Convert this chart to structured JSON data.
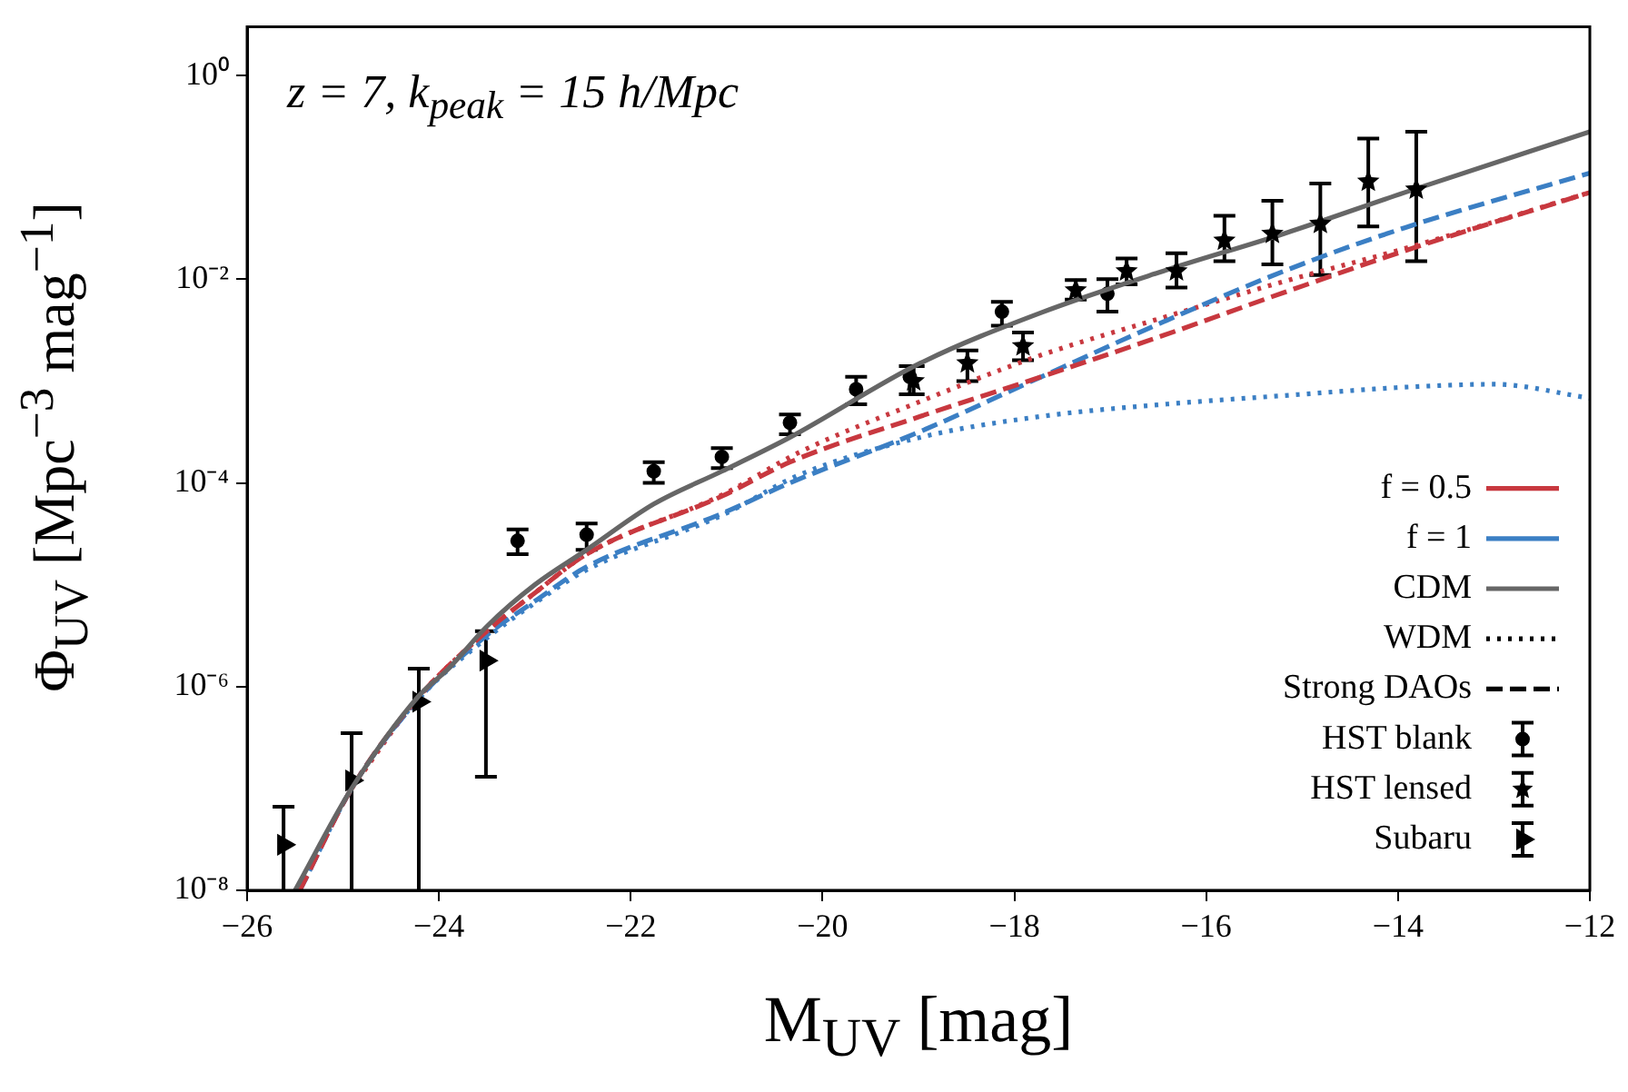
{
  "chart_data": {
    "type": "line",
    "xlabel": "M$_{UV}$ [mag]",
    "ylabel": "Φ$_{UV}$ [Mpc$^{−3}$ mag$^{−1}$]",
    "annotations": [
      "z = 7,  k$_{peak}$ = 15 h/Mpc"
    ],
    "xlim": [
      -26,
      -12
    ],
    "xticks": [
      {
        "value": -26,
        "label": "−26"
      },
      {
        "value": -24,
        "label": "−24"
      },
      {
        "value": -22,
        "label": "−22"
      },
      {
        "value": -20,
        "label": "−20"
      },
      {
        "value": -18,
        "label": "−18"
      },
      {
        "value": -16,
        "label": "−16"
      },
      {
        "value": -14,
        "label": "−14"
      },
      {
        "value": -12,
        "label": "−12"
      }
    ],
    "ylim": [
      1e-08,
      3
    ],
    "yticks": [
      {
        "value": 1e-08,
        "label": "10⁻⁸"
      },
      {
        "value": 1e-06,
        "label": "10⁻⁶"
      },
      {
        "value": 0.0001,
        "label": "10⁻⁴"
      },
      {
        "value": 0.01,
        "label": "10⁻²"
      },
      {
        "value": 1,
        "label": "10⁰"
      }
    ],
    "log": "y",
    "grid": false,
    "legend": "bottom right",
    "series": [
      {
        "name": "f = 0.5",
        "color": "#c8383f",
        "line_style": "solid"
      },
      {
        "name": "f = 1",
        "color": "#3b7fc4",
        "line_style": "solid"
      },
      {
        "name": "CDM",
        "color": "#666666",
        "line_style": "solid",
        "x": [
          -25.5,
          -24.91,
          -24.21,
          -23.9,
          -23.5,
          -23.0,
          -22.46,
          -21.76,
          -21.05,
          -20.34,
          -18.98,
          -17.72,
          -16.45,
          -15.19,
          -13.93,
          -12
        ],
        "values": [
          1e-08,
          1e-07,
          8.1e-07,
          1.5e-06,
          3.9e-06,
          1e-05,
          2.2e-05,
          6.2e-05,
          0.00013,
          0.00028,
          0.0015,
          0.0047,
          0.012,
          0.028,
          0.071,
          0.28
        ]
      },
      {
        "name": "WDM",
        "line_style": "dotted"
      },
      {
        "name": "Strong DAOs",
        "line_style": "dashed"
      },
      {
        "name": "HST blank",
        "type": "scatter",
        "marker": "circle",
        "color": "#000000",
        "x": [
          -23.18,
          -22.46,
          -21.76,
          -21.05,
          -20.34,
          -19.65,
          -19.09,
          -18.13,
          -17.03
        ],
        "values": [
          2.7e-05,
          3.1e-05,
          0.00013,
          0.00018,
          0.00039,
          0.00083,
          0.0011,
          0.0048,
          0.0072
        ],
        "errors": [
          [
            2e-05,
            3.5e-05
          ],
          [
            2.2e-05,
            4e-05
          ],
          [
            0.0001,
            0.00016
          ],
          [
            0.00014,
            0.00022
          ],
          [
            0.0003,
            0.00047
          ],
          [
            0.00059,
            0.0011
          ],
          [
            0.00074,
            0.0014
          ],
          [
            0.0035,
            0.006
          ],
          [
            0.0048,
            0.01
          ]
        ]
      },
      {
        "name": "HST lensed",
        "type": "scatter",
        "marker": "star",
        "color": "#000000",
        "x": [
          -19.05,
          -18.49,
          -17.91,
          -17.36,
          -16.83,
          -16.31,
          -15.81,
          -15.31,
          -14.81,
          -14.31,
          -13.81
        ],
        "values": [
          0.001,
          0.0015,
          0.0022,
          0.0078,
          0.012,
          0.012,
          0.024,
          0.028,
          0.035,
          0.091,
          0.076
        ],
        "errors": [
          [
            0.00074,
            0.0014
          ],
          [
            0.001,
            0.002
          ],
          [
            0.0016,
            0.003
          ],
          [
            0.0063,
            0.0098
          ],
          [
            0.0089,
            0.016
          ],
          [
            0.0083,
            0.018
          ],
          [
            0.015,
            0.042
          ],
          [
            0.014,
            0.059
          ],
          [
            0.011,
            0.087
          ],
          [
            0.033,
            0.24
          ],
          [
            0.015,
            0.28
          ]
        ]
      },
      {
        "name": "Subaru",
        "type": "scatter",
        "marker": "triangle",
        "color": "#000000",
        "x": [
          -25.62,
          -24.91,
          -24.21,
          -23.51
        ],
        "values": [
          2.8e-08,
          1.2e-07,
          7.1e-07,
          1.8e-06
        ],
        "errors": [
          [
            1e-08,
            6.6e-08
          ],
          [
            1e-08,
            3.5e-07
          ],
          [
            1e-08,
            1.5e-06
          ],
          [
            1.3e-07,
            3.5e-06
          ]
        ]
      },
      {
        "color": "#c8383f",
        "line_style": "dashed",
        "x": [
          -25.45,
          -24.91,
          -24.21,
          -23.5,
          -23.0,
          -22.46,
          -21.05,
          -20.34,
          -18.98,
          -17.72,
          -16.45,
          -15.19,
          -13.93,
          -12
        ],
        "values": [
          1e-08,
          1e-07,
          7.9e-07,
          3.5e-06,
          8.3e-06,
          2e-05,
          7.4e-05,
          0.00016,
          0.00045,
          0.0011,
          0.0028,
          0.0074,
          0.019,
          0.071
        ]
      },
      {
        "color": "#3b7fc4",
        "line_style": "dashed",
        "x": [
          -25.45,
          -24.91,
          -24.21,
          -23.5,
          -23.0,
          -22.46,
          -21.05,
          -20.34,
          -18.98,
          -17.72,
          -16.45,
          -15.19,
          -13.93,
          -12
        ],
        "values": [
          1e-08,
          1e-07,
          7.6e-07,
          3.2e-06,
          6.9e-06,
          1.5e-05,
          5e-05,
          0.0001,
          0.00032,
          0.0011,
          0.0038,
          0.012,
          0.032,
          0.11
        ]
      },
      {
        "color": "#c8383f",
        "line_style": "dotted",
        "x": [
          -24.91,
          -24.21,
          -23.5,
          -23.0,
          -22.46,
          -21.05,
          -20.24,
          -18.98,
          -17.72,
          -16.45,
          -15.19,
          -13.93,
          -12
        ],
        "values": [
          1e-07,
          7.9e-07,
          3.5e-06,
          8.3e-06,
          2e-05,
          7.6e-05,
          0.0002,
          0.00063,
          0.0018,
          0.0042,
          0.0095,
          0.02,
          0.071
        ]
      },
      {
        "color": "#3b7fc4",
        "line_style": "dotted",
        "x": [
          -25.45,
          -24.91,
          -24.21,
          -23.5,
          -23.0,
          -22.46,
          -21.05,
          -20.24,
          -18.98,
          -17.72,
          -16.45,
          -15.19,
          -13.93,
          -13.0,
          -12
        ],
        "values": [
          1e-08,
          1e-07,
          7.6e-07,
          3e-06,
          6.6e-06,
          1.4e-05,
          4.8e-05,
          0.00012,
          0.00028,
          0.00045,
          0.00059,
          0.00072,
          0.00087,
          0.00093,
          0.00068
        ]
      }
    ]
  }
}
